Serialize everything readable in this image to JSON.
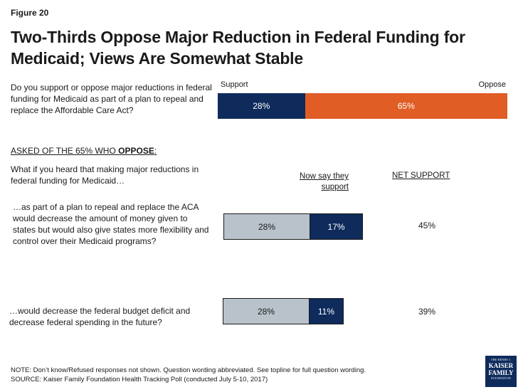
{
  "figure_label": "Figure 20",
  "title": "Two-Thirds Oppose Major Reduction in Federal Funding for Medicaid; Views Are Somewhat Stable",
  "main_question": "Do you support or oppose major reductions in federal funding for Medicaid as part of a plan to repeal and replace the Affordable Care Act?",
  "section_label_prefix": "ASKED OF THE 65% WHO ",
  "section_label_bold": "OPPOSE",
  "section_label_suffix": ":",
  "sub_question": "What if you heard that making major reductions in federal funding for Medicaid…",
  "col_now_support": "Now say they support",
  "col_net_support": "NET SUPPORT",
  "statements": [
    "…as part of a plan to repeal and replace the ACA would decrease the amount of money given to states but would also give states more flexibility  and control over their Medicaid programs?",
    "…would decrease the federal budget deficit and decrease federal spending in the future?"
  ],
  "note": "NOTE: Don’t know/Refused responses not shown. Question wording abbreviated. See topline for full question wording.",
  "source": "SOURCE: Kaiser Family Foundation Health Tracking Poll (conducted July 5-10, 2017)",
  "logo": {
    "line1": "THE HENRY J.",
    "line2": "KAISER",
    "line3": "FAMILY",
    "line4": "FOUNDATION"
  },
  "colors": {
    "support": "#0e2b5c",
    "oppose": "#e05d25",
    "prior_support": "#b9c2cb"
  },
  "chart_data": [
    {
      "type": "bar",
      "orientation": "horizontal-stacked",
      "legend": [
        "Support",
        "Oppose"
      ],
      "series": [
        {
          "name": "Support",
          "values": [
            28
          ],
          "labels": [
            "28%"
          ]
        },
        {
          "name": "Oppose",
          "values": [
            65
          ],
          "labels": [
            "65%"
          ]
        }
      ],
      "xlim": [
        0,
        100
      ]
    },
    {
      "type": "bar",
      "orientation": "horizontal-stacked",
      "categories": [
        "flexibility",
        "deficit"
      ],
      "series": [
        {
          "values": [
            28,
            28
          ],
          "labels": [
            "28%",
            "28%"
          ]
        },
        {
          "name": "Now say they support",
          "values": [
            17,
            11
          ],
          "labels": [
            "17%",
            "11%"
          ]
        }
      ],
      "net_support": [
        "45%",
        "39%"
      ],
      "xlim": [
        0,
        100
      ]
    }
  ]
}
